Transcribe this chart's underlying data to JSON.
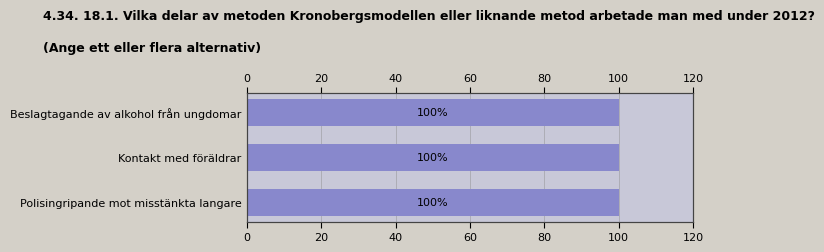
{
  "title_line1": "4.34. 18.1. Vilka delar av metoden Kronobergsmodellen eller liknande metod arbetade man med under 2012?",
  "title_line2": "(Ange ett eller flera alternativ)",
  "categories": [
    "Beslagtagande av alkohol från ungdomar",
    "Kontakt med föräldrar",
    "Polisingripande mot misstänkta langare"
  ],
  "values": [
    100,
    100,
    100
  ],
  "bar_color": "#8888cc",
  "background_color": "#d4d0c8",
  "plot_bg_color": "#c8c8d8",
  "text_color": "#000000",
  "ylabel_color": "#000000",
  "bar_label": "100%",
  "xlim": [
    0,
    120
  ],
  "xticks": [
    0,
    20,
    40,
    60,
    80,
    100,
    120
  ],
  "title_fontsize": 9,
  "tick_fontsize": 8,
  "ylabel_fontsize": 8,
  "bar_label_fontsize": 8
}
